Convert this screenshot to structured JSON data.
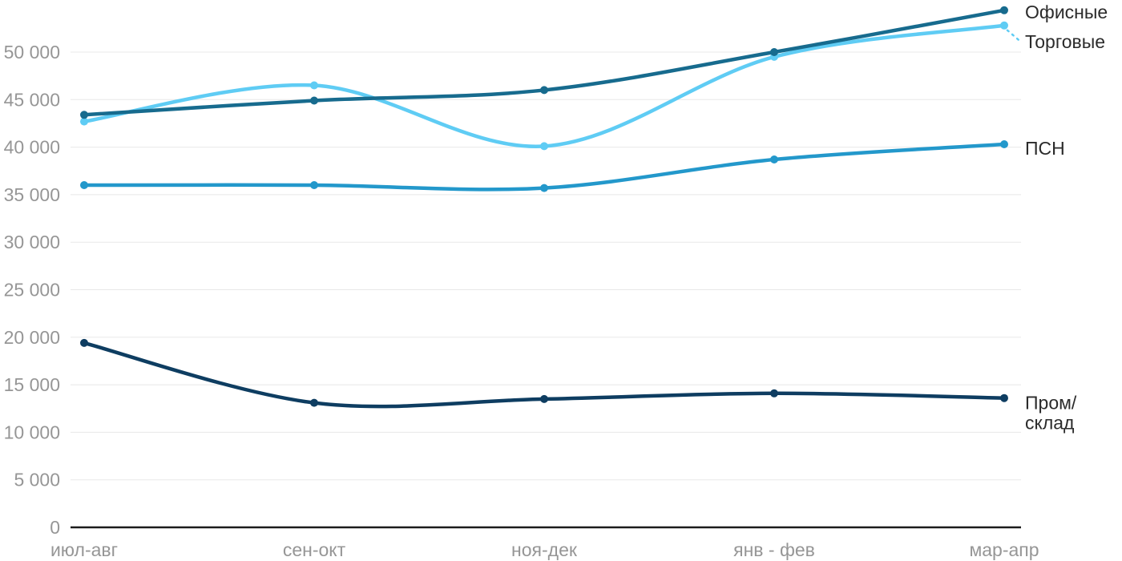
{
  "chart_data": {
    "type": "line",
    "title": "",
    "categories": [
      "июл-авг",
      "сен-окт",
      "ноя-дек",
      "янв - фев",
      "мар-апр"
    ],
    "series": [
      {
        "name": "Офисные",
        "label_lines": [
          "Офисные"
        ],
        "color": "#176b8e",
        "values": [
          43400,
          44900,
          46000,
          50000,
          54400
        ]
      },
      {
        "name": "Торговые",
        "label_lines": [
          "Торговые"
        ],
        "color": "#5fccf4",
        "values": [
          42700,
          46500,
          40100,
          49500,
          52800
        ],
        "label_connector": true
      },
      {
        "name": "ПСН",
        "label_lines": [
          "ПСН"
        ],
        "color": "#2398cb",
        "values": [
          36000,
          36000,
          35700,
          38700,
          40300
        ]
      },
      {
        "name": "Пром/склад",
        "label_lines": [
          "Пром/",
          "склад"
        ],
        "color": "#0e3d61",
        "values": [
          19400,
          13100,
          13500,
          14100,
          13600
        ]
      }
    ],
    "y_ticks": [
      "0",
      "5 000",
      "10 000",
      "15 000",
      "20 000",
      "25 000",
      "30 000",
      "35 000",
      "40 000",
      "45 000",
      "50 000"
    ],
    "y_tick_step": 5000,
    "ylim": [
      0,
      55000
    ],
    "xlabel": "",
    "ylabel": "",
    "grid": true,
    "legend_position": "right-inline",
    "colors": {
      "background": "#ffffff",
      "grid": "#e8e8e8",
      "axis": "#1c1c1c",
      "tick_label": "#969696",
      "series_label": "#2b2b2b"
    }
  }
}
